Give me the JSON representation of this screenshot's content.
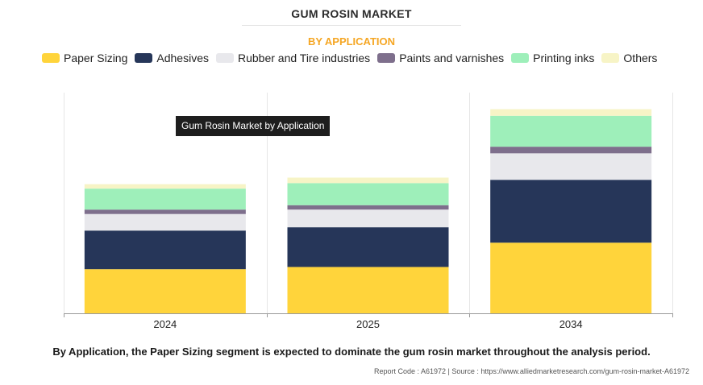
{
  "header": {
    "title": "GUM ROSIN MARKET",
    "subtitle": "BY APPLICATION"
  },
  "tooltip": {
    "text": "Gum Rosin Market by Application"
  },
  "caption": "By Application, the Paper Sizing segment is expected to dominate the gum rosin market throughout the analysis period.",
  "footer": "Report Code : A61972  |  Source : https://www.alliedmarketresearch.com/gum-rosin-market-A61972",
  "chart_data": {
    "type": "bar",
    "stacked": true,
    "title": "GUM ROSIN MARKET",
    "subtitle": "BY APPLICATION",
    "xlabel": "",
    "ylabel": "",
    "legend_position": "top",
    "grid": "vertical",
    "categories": [
      "2024",
      "2025",
      "2034"
    ],
    "ylim": [
      0,
      100
    ],
    "series": [
      {
        "name": "Paper Sizing",
        "color": "#ffd43b",
        "values": [
          20,
          21,
          32
        ]
      },
      {
        "name": "Adhesives",
        "color": "#263659",
        "values": [
          17.5,
          18,
          28.5
        ]
      },
      {
        "name": "Rubber and Tire industries",
        "color": "#e8e8ec",
        "values": [
          7.5,
          8,
          12
        ]
      },
      {
        "name": "Paints and varnishes",
        "color": "#7e6f8c",
        "values": [
          2,
          2,
          3
        ]
      },
      {
        "name": "Printing inks",
        "color": "#9eefba",
        "values": [
          9.5,
          10,
          14
        ]
      },
      {
        "name": "Others",
        "color": "#f7f4c6",
        "values": [
          2,
          2.5,
          3
        ]
      }
    ]
  }
}
